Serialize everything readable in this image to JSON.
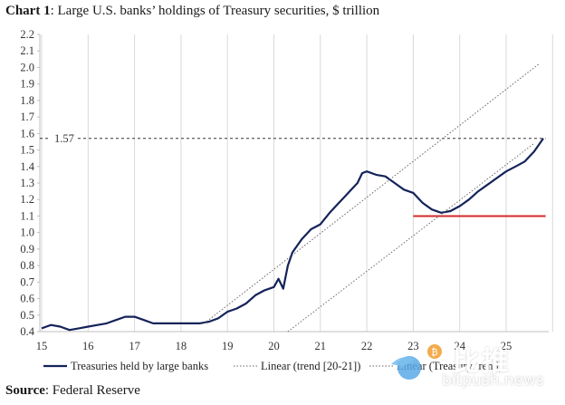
{
  "title": {
    "lead": "Chart 1",
    "rest": ": Large U.S. banks’ holdings of Treasury securities, $ trillion"
  },
  "source": {
    "lead": "Source",
    "rest": ": Federal Reserve"
  },
  "watermark": {
    "cn": "比推",
    "en": "bitpush.news",
    "icon": "bird-coin-logo"
  },
  "colors": {
    "series": "#14235a",
    "red_line": "#d42a2a",
    "trend": "#666666",
    "dashed": "#333333",
    "grid": "#d9d9d9"
  },
  "chart_data": {
    "type": "line",
    "title": "Large U.S. banks’ holdings of Treasury securities, $ trillion",
    "xlabel": "",
    "ylabel": "",
    "x_ticks": [
      "15",
      "16",
      "17",
      "18",
      "19",
      "20",
      "21",
      "22",
      "23",
      "24",
      "25"
    ],
    "xlim": [
      2015.0,
      2025.85
    ],
    "y_ticks": [
      "0.4",
      "0.5",
      "0.6",
      "0.7",
      "0.8",
      "0.9",
      "1.0",
      "1.1",
      "1.2",
      "1.3",
      "1.4",
      "1.5",
      "1.6",
      "1.7",
      "1.8",
      "1.9",
      "2.0",
      "2.1",
      "2.2"
    ],
    "ylim": [
      0.4,
      2.2
    ],
    "grid": "vertical",
    "legend_position": "bottom",
    "series": [
      {
        "name": "Treasuries held by large banks",
        "style": "solid",
        "x": [
          2015.0,
          2015.2,
          2015.4,
          2015.6,
          2015.8,
          2016.0,
          2016.2,
          2016.4,
          2016.6,
          2016.8,
          2017.0,
          2017.2,
          2017.4,
          2017.6,
          2017.8,
          2018.0,
          2018.2,
          2018.4,
          2018.6,
          2018.8,
          2019.0,
          2019.2,
          2019.4,
          2019.6,
          2019.8,
          2020.0,
          2020.1,
          2020.2,
          2020.3,
          2020.4,
          2020.6,
          2020.8,
          2021.0,
          2021.2,
          2021.4,
          2021.6,
          2021.8,
          2021.9,
          2022.0,
          2022.2,
          2022.4,
          2022.6,
          2022.8,
          2023.0,
          2023.2,
          2023.4,
          2023.6,
          2023.8,
          2024.0,
          2024.2,
          2024.4,
          2024.6,
          2024.8,
          2025.0,
          2025.2,
          2025.4,
          2025.6,
          2025.7,
          2025.8
        ],
        "values": [
          0.42,
          0.44,
          0.43,
          0.41,
          0.42,
          0.43,
          0.44,
          0.45,
          0.47,
          0.49,
          0.49,
          0.47,
          0.45,
          0.45,
          0.45,
          0.45,
          0.45,
          0.45,
          0.46,
          0.48,
          0.52,
          0.54,
          0.57,
          0.62,
          0.65,
          0.67,
          0.72,
          0.66,
          0.8,
          0.88,
          0.96,
          1.02,
          1.05,
          1.12,
          1.18,
          1.24,
          1.3,
          1.36,
          1.37,
          1.35,
          1.34,
          1.3,
          1.26,
          1.24,
          1.18,
          1.14,
          1.12,
          1.13,
          1.16,
          1.2,
          1.25,
          1.29,
          1.33,
          1.37,
          1.4,
          1.43,
          1.49,
          1.53,
          1.57
        ]
      },
      {
        "name": "Linear (trend [20-21])",
        "style": "dotted",
        "x": [
          2018.5,
          2025.7
        ],
        "values": [
          0.45,
          2.02
        ]
      },
      {
        "name": "Linear (Treasury trend)",
        "style": "dotted",
        "x": [
          2020.3,
          2025.6
        ],
        "values": [
          0.4,
          1.54
        ]
      }
    ],
    "reference_lines": [
      {
        "label": "1.57",
        "value": 1.57,
        "style": "dashed",
        "x_from": 2015.0,
        "x_to": 2025.85
      },
      {
        "label": "",
        "value": 1.1,
        "style": "solid-red",
        "x_from": 2023.0,
        "x_to": 2025.85
      }
    ]
  }
}
